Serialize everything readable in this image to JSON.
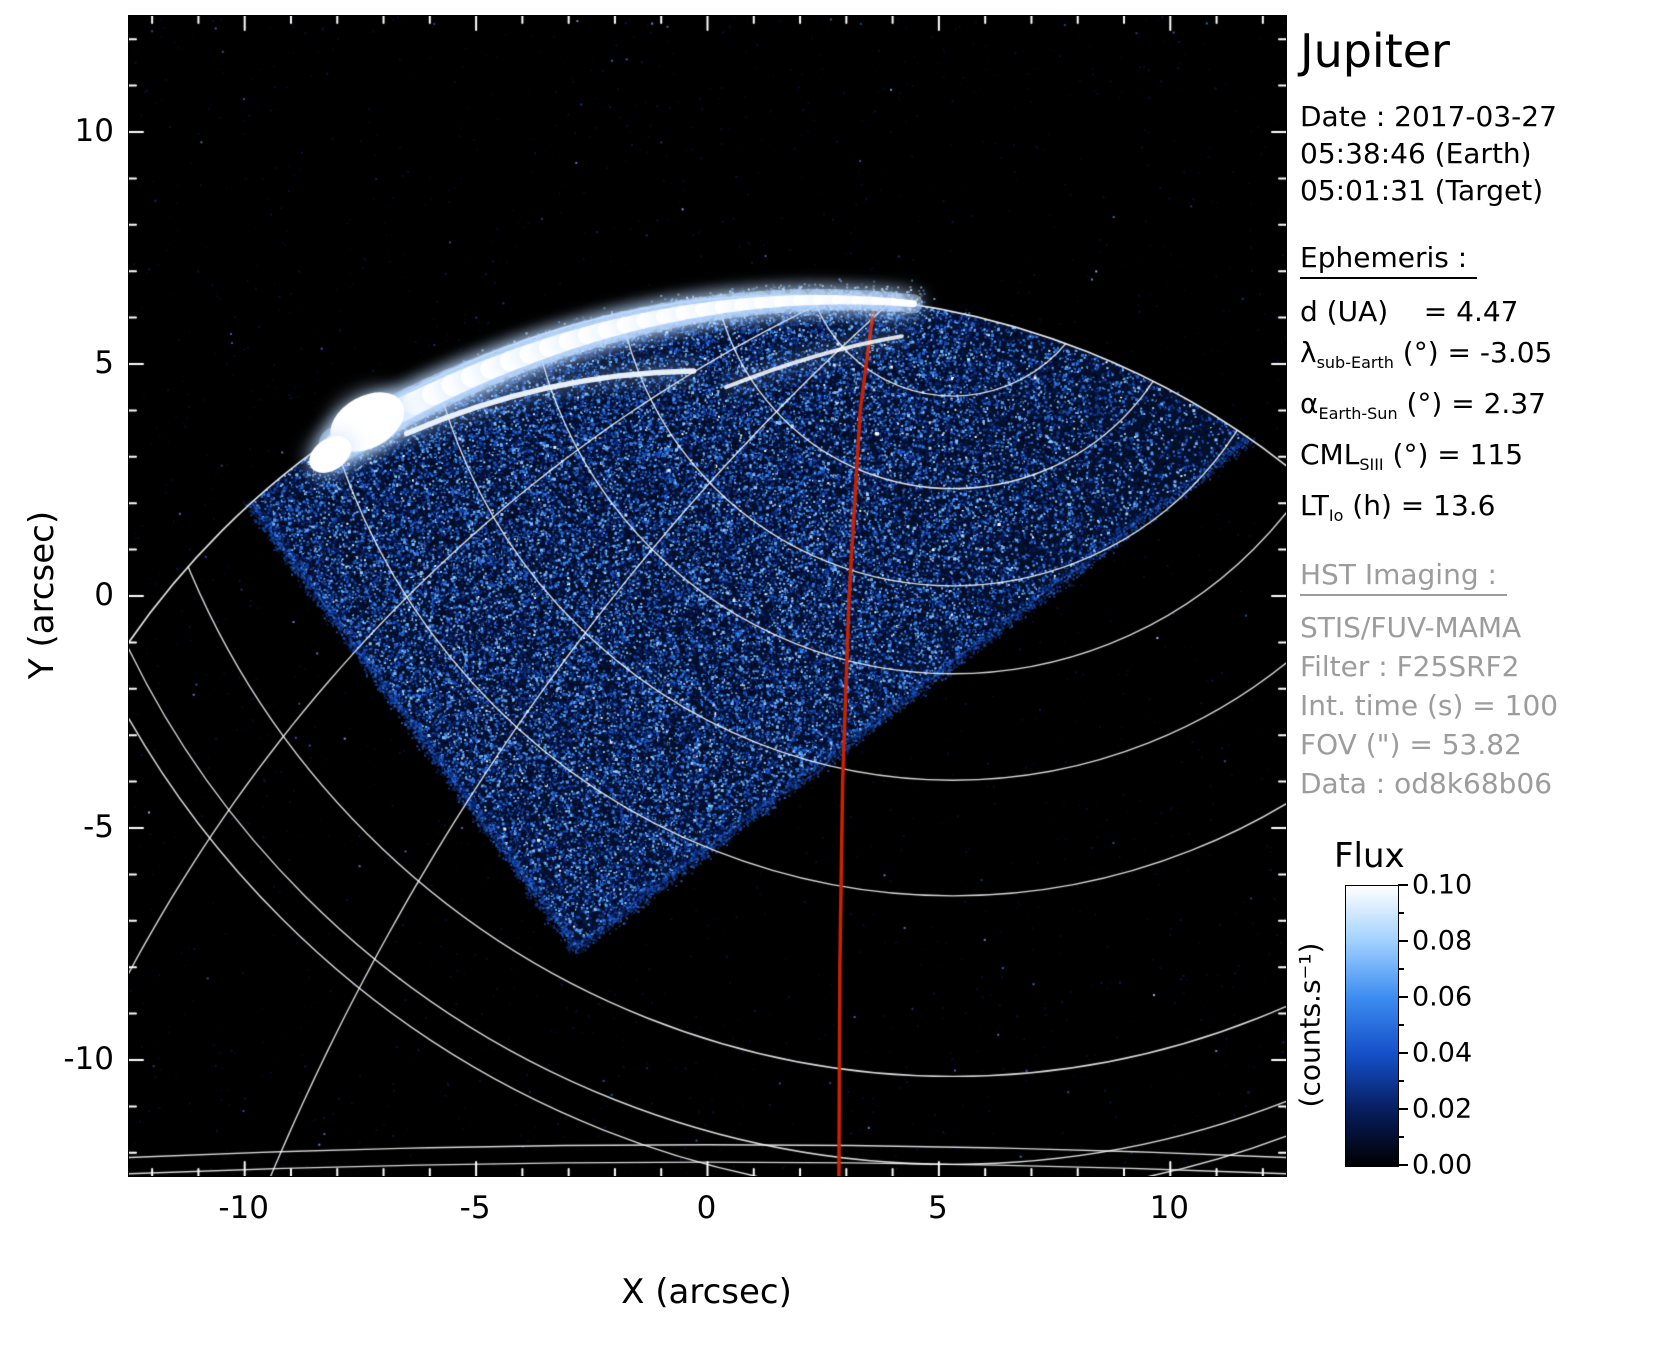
{
  "title": "Jupiter",
  "info": {
    "date_line1": "Date : 2017-03-27",
    "date_line2": "05:38:46 (Earth)",
    "date_line3": "05:01:31 (Target)",
    "ephemeris_heading": "Ephemeris :",
    "ephemeris": [
      [
        {
          "t": "d (UA)"
        },
        {
          "t": "    = 4.47"
        }
      ],
      [
        {
          "t": "λ"
        },
        {
          "t": "sub-Earth",
          "sub": true
        },
        {
          "t": " (°) = -3.05"
        }
      ],
      [
        {
          "t": "α"
        },
        {
          "t": "Earth-Sun",
          "sub": true
        },
        {
          "t": " (°) = 2.37"
        }
      ],
      [
        {
          "t": "CML"
        },
        {
          "t": "SIII",
          "sub": true
        },
        {
          "t": " (°) = 115"
        }
      ],
      [
        {
          "t": "LT"
        },
        {
          "t": "Io",
          "sub": true
        },
        {
          "t": " (h) = 13.6"
        }
      ]
    ],
    "hst_heading": "HST Imaging :",
    "hst": [
      "STIS/FUV-MAMA",
      "Filter : F25SRF2",
      "Int. time (s) = 100",
      "FOV (\") = 53.82",
      "Data : od8k68b06"
    ]
  },
  "colorbar": {
    "title": "Flux",
    "unit": "(counts.s⁻¹)",
    "ticks": [
      "0.10",
      "0.08",
      "0.06",
      "0.04",
      "0.02",
      "0.00"
    ],
    "gradient": [
      "#000000",
      "#071d5e",
      "#1550c8",
      "#3c8cf0",
      "#9fd0ff",
      "#ffffff"
    ]
  },
  "chart_data": {
    "type": "heatmap",
    "description": "HST/STIS FUV-MAMA image of Jupiter's northern ultraviolet aurora: rotated-square detector region of noisy blue counts with saturated white auroral oval, planetary latitude/longitude grid in white, red central-meridian (CML) line, black sky background",
    "xlabel": "X (arcsec)",
    "ylabel": "Y (arcsec)",
    "xlim": [
      -12.5,
      12.5
    ],
    "ylim": [
      -12.5,
      12.5
    ],
    "x_ticks": [
      "-10",
      "-5",
      "0",
      "5",
      "10"
    ],
    "x_tick_values": [
      -10,
      -5,
      0,
      5,
      10
    ],
    "y_ticks": [
      "10",
      "5",
      "0",
      "-5",
      "-10"
    ],
    "y_tick_values": [
      10,
      5,
      0,
      -5,
      -10
    ],
    "background": "#000000",
    "flux_scale": {
      "min": 0.0,
      "max": 0.1,
      "units": "counts/s"
    },
    "colormap_stops": [
      "#000006",
      "#071d5e",
      "#1550c8",
      "#3c8cf0",
      "#9fd0ff",
      "#ffffff"
    ],
    "grid_color": "rgba(255,255,255,0.85)",
    "detector_polygon": [
      [
        -9.9,
        2.0
      ],
      [
        -2.85,
        -7.6
      ],
      [
        11.7,
        3.4
      ],
      [
        4.55,
        6.25
      ]
    ],
    "disk_limb": {
      "center": [
        1.8,
        -10.85
      ],
      "radius": 17.38
    },
    "pole": [
      5.3,
      7.5
    ],
    "lat_circle_radii": [
      3.2,
      5.2,
      7.3,
      9.2,
      11.5,
      14.0,
      17.9,
      19.8,
      20.5
    ],
    "meridians": [
      {
        "angle0": 140,
        "drift": -0.55
      },
      {
        "angle0": 160,
        "drift": -0.9
      }
    ],
    "bottom_arcs": [
      [
        [
          -12.5,
          -12.1
        ],
        [
          0,
          -11.55
        ],
        [
          12.5,
          -12.1
        ]
      ],
      [
        [
          -12.5,
          -12.45
        ],
        [
          0,
          -11.95
        ],
        [
          12.5,
          -12.45
        ]
      ]
    ],
    "aurora": {
      "main_arc": [
        [
          -8.0,
          3.25
        ],
        [
          -1.8,
          6.9
        ],
        [
          4.45,
          6.3
        ]
      ],
      "blobs": [
        [
          -7.35,
          3.75,
          0.86,
          0.56,
          -0.5
        ],
        [
          -8.15,
          3.05,
          0.5,
          0.34,
          -0.6
        ]
      ],
      "secondary_arc": [
        [
          -6.5,
          3.5
        ],
        [
          -3.5,
          4.8
        ],
        [
          -0.3,
          4.85
        ]
      ],
      "streak": [
        [
          0.4,
          4.5
        ],
        [
          2.4,
          5.3
        ],
        [
          4.2,
          5.6
        ]
      ]
    },
    "cml_line": {
      "color": "#cc2200",
      "points": [
        [
          3.58,
          6.14
        ],
        [
          3.3,
          4.0
        ],
        [
          3.06,
          0
        ],
        [
          2.92,
          -4.0
        ],
        [
          2.86,
          -8.0
        ],
        [
          2.84,
          -12.5
        ]
      ]
    }
  }
}
